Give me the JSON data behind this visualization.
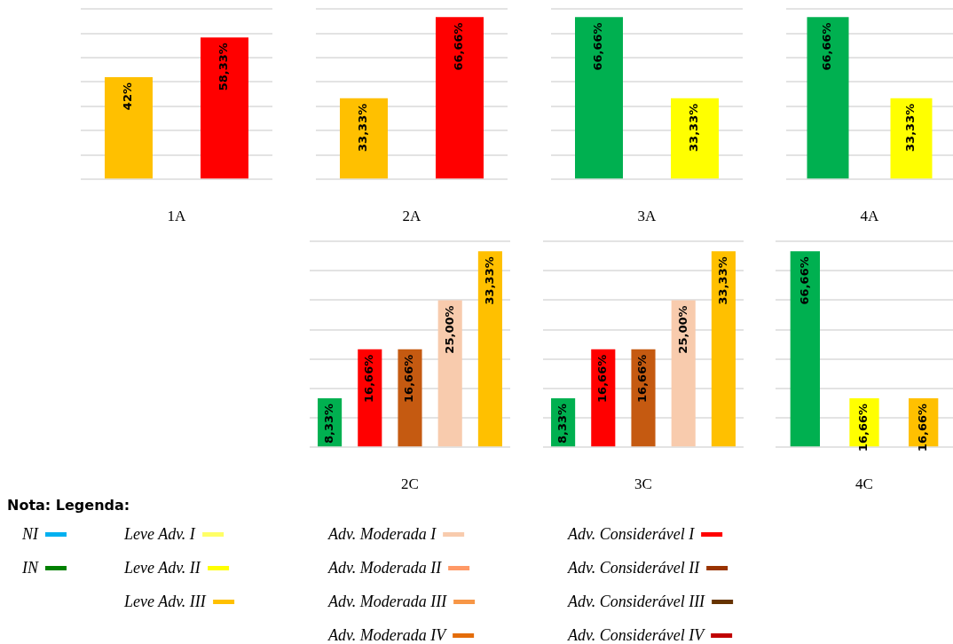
{
  "chart_data": [
    {
      "type": "bar",
      "categories": [
        null,
        null
      ],
      "xlabel": "1A",
      "ylim": [
        0,
        70
      ],
      "yticks": [
        {
          "value": 0,
          "label": null
        },
        {
          "value": 10,
          "label": null
        },
        {
          "value": 20,
          "label": null
        },
        {
          "value": 30,
          "label": null
        },
        {
          "value": 40,
          "label": null
        },
        {
          "value": 50,
          "label": null
        },
        {
          "value": 60,
          "label": null
        },
        {
          "value": 70,
          "label": null
        }
      ],
      "grid": "y",
      "values": [
        42,
        58.33
      ],
      "colors": [
        "#ffc000",
        "#ff0000"
      ],
      "value_labels": [
        "42%",
        "58,33%"
      ]
    },
    {
      "type": "bar",
      "categories": [
        null,
        null
      ],
      "xlabel": "2A",
      "ylim": [
        0,
        70
      ],
      "yticks": [
        {
          "value": 0,
          "label": null
        },
        {
          "value": 10,
          "label": null
        },
        {
          "value": 20,
          "label": null
        },
        {
          "value": 30,
          "label": null
        },
        {
          "value": 40,
          "label": null
        },
        {
          "value": 50,
          "label": null
        },
        {
          "value": 60,
          "label": null
        },
        {
          "value": 70,
          "label": null
        }
      ],
      "grid": "y",
      "values": [
        33.33,
        66.66
      ],
      "colors": [
        "#ffc000",
        "#ff0000"
      ],
      "value_labels": [
        "33,33%",
        "66,66%"
      ]
    },
    {
      "type": "bar",
      "categories": [
        null,
        null
      ],
      "xlabel": "3A",
      "ylim": [
        0,
        70
      ],
      "yticks": [
        {
          "value": 0,
          "label": null
        },
        {
          "value": 10,
          "label": null
        },
        {
          "value": 20,
          "label": null
        },
        {
          "value": 30,
          "label": null
        },
        {
          "value": 40,
          "label": null
        },
        {
          "value": 50,
          "label": null
        },
        {
          "value": 60,
          "label": null
        },
        {
          "value": 70,
          "label": null
        }
      ],
      "grid": "y",
      "values": [
        66.66,
        33.33
      ],
      "colors": [
        "#00b050",
        "#ffff00"
      ],
      "value_labels": [
        "66,66%",
        "33,33%"
      ]
    },
    {
      "type": "bar",
      "categories": [
        null,
        null
      ],
      "xlabel": "4A",
      "ylim": [
        0,
        70
      ],
      "yticks": [
        {
          "value": 0,
          "label": null
        },
        {
          "value": 10,
          "label": null
        },
        {
          "value": 20,
          "label": null
        },
        {
          "value": 30,
          "label": null
        },
        {
          "value": 40,
          "label": null
        },
        {
          "value": 50,
          "label": null
        },
        {
          "value": 60,
          "label": null
        },
        {
          "value": 70,
          "label": null
        }
      ],
      "grid": "y",
      "values": [
        66.66,
        33.33
      ],
      "colors": [
        "#00b050",
        "#ffff00"
      ],
      "value_labels": [
        "66,66%",
        "33,33%"
      ]
    },
    {
      "type": "bar",
      "categories": [
        null,
        null,
        null,
        null,
        null
      ],
      "xlabel": "2C",
      "ylim": [
        0,
        35
      ],
      "yticks": [
        {
          "value": 0,
          "label": null
        },
        {
          "value": 5,
          "label": null
        },
        {
          "value": 10,
          "label": null
        },
        {
          "value": 15,
          "label": null
        },
        {
          "value": 20,
          "label": null
        },
        {
          "value": 25,
          "label": null
        },
        {
          "value": 30,
          "label": null
        },
        {
          "value": 35,
          "label": null
        }
      ],
      "grid": "y",
      "values": [
        8.33,
        16.66,
        16.66,
        25.0,
        33.33
      ],
      "colors": [
        "#00b050",
        "#ff0000",
        "#c55a11",
        "#f8cbad",
        "#ffc000"
      ],
      "value_labels": [
        "8,33%",
        "16,66%",
        "16,66%",
        "25,00%",
        "33,33%"
      ]
    },
    {
      "type": "bar",
      "categories": [
        null,
        null,
        null,
        null,
        null
      ],
      "xlabel": "3C",
      "ylim": [
        0,
        35
      ],
      "yticks": [
        {
          "value": 0,
          "label": null
        },
        {
          "value": 5,
          "label": null
        },
        {
          "value": 10,
          "label": null
        },
        {
          "value": 15,
          "label": null
        },
        {
          "value": 20,
          "label": null
        },
        {
          "value": 25,
          "label": null
        },
        {
          "value": 30,
          "label": null
        },
        {
          "value": 35,
          "label": null
        }
      ],
      "grid": "y",
      "values": [
        8.33,
        16.66,
        16.66,
        25.0,
        33.33
      ],
      "colors": [
        "#00b050",
        "#ff0000",
        "#c55a11",
        "#f8cbad",
        "#ffc000"
      ],
      "value_labels": [
        "8,33%",
        "16,66%",
        "16,66%",
        "25,00%",
        "33,33%"
      ]
    },
    {
      "type": "bar",
      "categories": [
        null,
        null,
        null
      ],
      "xlabel": "4C",
      "ylim": [
        0,
        70
      ],
      "yticks": [
        {
          "value": 0,
          "label": null
        },
        {
          "value": 10,
          "label": null
        },
        {
          "value": 20,
          "label": null
        },
        {
          "value": 30,
          "label": null
        },
        {
          "value": 40,
          "label": null
        },
        {
          "value": 50,
          "label": null
        },
        {
          "value": 60,
          "label": null
        },
        {
          "value": 70,
          "label": null
        }
      ],
      "grid": "y",
      "values": [
        66.66,
        16.66,
        16.66
      ],
      "colors": [
        "#00b050",
        "#ffff00",
        "#ffc000"
      ],
      "value_labels": [
        "66,66%",
        "16,66%",
        "16,66%"
      ]
    },
    {
      "type": "other",
      "title": "Nota: Legenda:",
      "series": [
        {
          "name": "NI",
          "color": "#00b0f0"
        },
        {
          "name": "IN",
          "color": "#008000"
        },
        {
          "name": "Leve Adv. I",
          "color": "#ffff66"
        },
        {
          "name": "Leve Adv. II",
          "color": "#ffff00"
        },
        {
          "name": "Leve Adv. III",
          "color": "#ffc000"
        },
        {
          "name": "Adv. Moderada I",
          "color": "#f8cbad"
        },
        {
          "name": "Adv. Moderada II",
          "color": "#ff9966"
        },
        {
          "name": "Adv. Moderada III",
          "color": "#f79646"
        },
        {
          "name": "Adv. Moderada IV",
          "color": "#e46c0a"
        },
        {
          "name": "Adv. Considerável I",
          "color": "#ff0000"
        },
        {
          "name": "Adv. Considerável II",
          "color": "#993300"
        },
        {
          "name": "Adv. Considerável III",
          "color": "#663300"
        },
        {
          "name": "Adv. Considerável IV",
          "color": "#c00000"
        }
      ]
    }
  ]
}
